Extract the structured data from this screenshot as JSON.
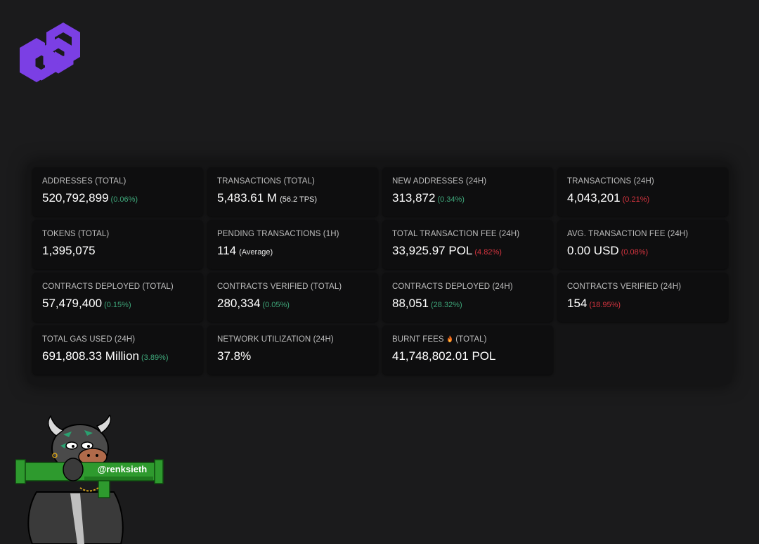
{
  "brand": {
    "logo_icon": "polygon-logo-icon",
    "accent_color": "#7b3fe4"
  },
  "stats": [
    {
      "id": "addresses-total",
      "label": "ADDRESSES (TOTAL)",
      "value": "520,792,899",
      "change": "(0.06%)",
      "trend": "up"
    },
    {
      "id": "transactions-total",
      "label": "TRANSACTIONS (TOTAL)",
      "value": "5,483.61 M",
      "note": "(56.2 TPS)"
    },
    {
      "id": "new-addresses-24h",
      "label": "NEW ADDRESSES (24H)",
      "value": "313,872",
      "change": "(0.34%)",
      "trend": "up"
    },
    {
      "id": "transactions-24h",
      "label": "TRANSACTIONS (24H)",
      "value": "4,043,201",
      "change": "(0.21%)",
      "trend": "down"
    },
    {
      "id": "tokens-total",
      "label": "TOKENS (TOTAL)",
      "value": "1,395,075"
    },
    {
      "id": "pending-transactions-1h",
      "label": "PENDING TRANSACTIONS (1H)",
      "value": "114",
      "note": "(Average)"
    },
    {
      "id": "total-transaction-fee-24h",
      "label": "TOTAL TRANSACTION FEE (24H)",
      "value": "33,925.97 POL",
      "change": "(4.82%)",
      "trend": "down"
    },
    {
      "id": "avg-transaction-fee-24h",
      "label": "AVG. TRANSACTION FEE (24H)",
      "value": "0.00 USD",
      "change": "(0.08%)",
      "trend": "down"
    },
    {
      "id": "contracts-deployed-total",
      "label": "CONTRACTS DEPLOYED (TOTAL)",
      "value": "57,479,400",
      "change": "(0.15%)",
      "trend": "up"
    },
    {
      "id": "contracts-verified-total",
      "label": "CONTRACTS VERIFIED (TOTAL)",
      "value": "280,334",
      "change": "(0.05%)",
      "trend": "up"
    },
    {
      "id": "contracts-deployed-24h",
      "label": "CONTRACTS DEPLOYED (24H)",
      "value": "88,051",
      "change": "(28.32%)",
      "trend": "up"
    },
    {
      "id": "contracts-verified-24h",
      "label": "CONTRACTS VERIFIED (24H)",
      "value": "154",
      "change": "(18.95%)",
      "trend": "down"
    },
    {
      "id": "total-gas-used-24h",
      "label": "TOTAL GAS USED (24H)",
      "value": "691,808.33 Million",
      "change": "(3.89%)",
      "trend": "up"
    },
    {
      "id": "network-utilization-24h",
      "label": "NETWORK UTILIZATION (24H)",
      "value": "37.8%"
    },
    {
      "id": "burnt-fees-total",
      "label_before": "BURNT FEES",
      "label_after": "(TOTAL)",
      "icon": "fire-icon",
      "value": "41,748,802.01 POL"
    }
  ],
  "colors": {
    "positive": "#3ea77a",
    "negative": "#d3343f"
  },
  "mascot": {
    "handle": "@renksieth",
    "icon": "bull-mascot-icon"
  }
}
